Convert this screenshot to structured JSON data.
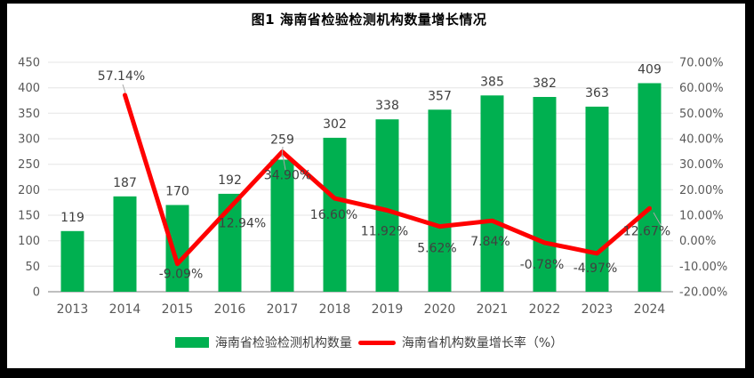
{
  "title": "图1 海南省检验检测机构数量增长情况",
  "colors": {
    "bar": "#00B050",
    "line": "#FF0000",
    "grid": "#E6E6E6",
    "baseline": "#BFBFBF",
    "axis_text": "#595959",
    "label_text": "#404040",
    "leader": "#A6A6A6",
    "border": "#000000",
    "background": "#FFFFFF"
  },
  "chart_data": {
    "type": "bar+line combo, dual axis",
    "categories": [
      "2013",
      "2014",
      "2015",
      "2016",
      "2017",
      "2018",
      "2019",
      "2020",
      "2021",
      "2022",
      "2023",
      "2024"
    ],
    "series": [
      {
        "name": "海南省检验检测机构数量",
        "type": "bar",
        "axis": "left",
        "color": "#00B050",
        "values": [
          119,
          187,
          170,
          192,
          259,
          302,
          338,
          357,
          385,
          382,
          363,
          409
        ],
        "labels": [
          "119",
          "187",
          "170",
          "192",
          "259",
          "302",
          "338",
          "357",
          "385",
          "382",
          "363",
          "409"
        ]
      },
      {
        "name": "海南省机构数量增长率（%）",
        "type": "line",
        "axis": "right",
        "color": "#FF0000",
        "values": [
          null,
          57.14,
          -9.09,
          12.94,
          34.9,
          16.6,
          11.92,
          5.62,
          7.84,
          -0.78,
          -4.97,
          12.67
        ],
        "labels": [
          null,
          "57.14%",
          "-9.09%",
          "12.94%",
          "34.90%",
          "16.60%",
          "11.92%",
          "5.62%",
          "7.84%",
          "-0.78%",
          "-4.97%",
          "12.67%"
        ]
      }
    ],
    "left_axis": {
      "min": 0,
      "max": 450,
      "step": 50,
      "ticks": [
        "450",
        "400",
        "350",
        "300",
        "250",
        "200",
        "150",
        "100",
        "50",
        "0"
      ]
    },
    "right_axis": {
      "min": -20,
      "max": 70,
      "step": 10,
      "ticks": [
        "70.00%",
        "60.00%",
        "50.00%",
        "40.00%",
        "30.00%",
        "20.00%",
        "10.00%",
        "0.00%",
        "-10.00%",
        "-20.00%"
      ]
    },
    "grid": true,
    "legend_position": "bottom",
    "title": "图1 海南省检验检测机构数量增长情况"
  },
  "legend": {
    "items": [
      {
        "label": "海南省检验检测机构数量",
        "swatch": "bar",
        "color": "#00B050"
      },
      {
        "label": "海南省机构数量增长率（%）",
        "swatch": "line",
        "color": "#FF0000"
      }
    ]
  }
}
